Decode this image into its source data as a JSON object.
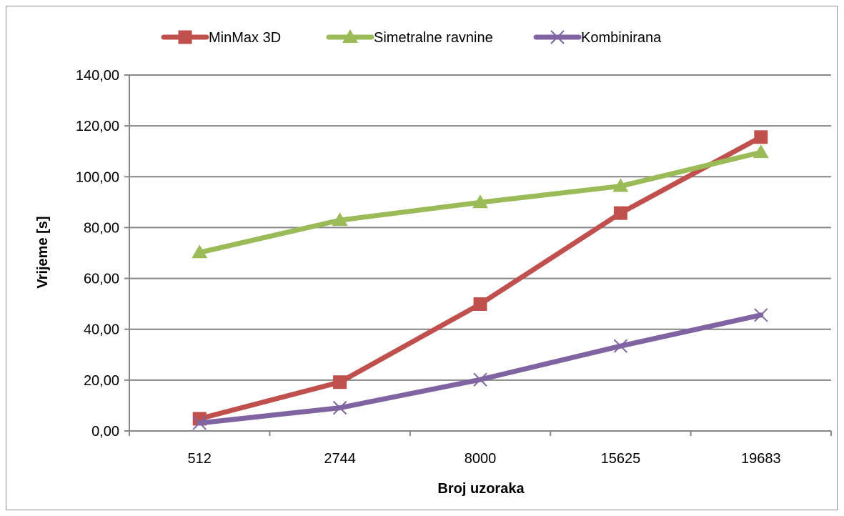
{
  "chart_data": {
    "type": "line",
    "categories": [
      "512",
      "2744",
      "8000",
      "15625",
      "19683"
    ],
    "series": [
      {
        "name": "MinMax 3D",
        "color": "#c0504d",
        "marker": "square",
        "values": [
          4.8,
          19.2,
          49.9,
          85.7,
          115.6
        ]
      },
      {
        "name": "Simetralne ravnine",
        "color": "#9bbb59",
        "marker": "triangle",
        "values": [
          70.2,
          82.9,
          89.9,
          96.3,
          109.6
        ]
      },
      {
        "name": "Kombinirana",
        "color": "#8064a2",
        "marker": "x",
        "values": [
          3.1,
          9.1,
          20.2,
          33.4,
          45.6
        ]
      }
    ],
    "y_ticks": [
      "0,00",
      "20,00",
      "40,00",
      "60,00",
      "80,00",
      "100,00",
      "120,00",
      "140,00"
    ],
    "ylim": [
      0,
      140
    ],
    "xlabel": "Broj uzoraka",
    "ylabel": "Vrijeme [s]",
    "grid": "horizontal",
    "legend_position": "top"
  }
}
